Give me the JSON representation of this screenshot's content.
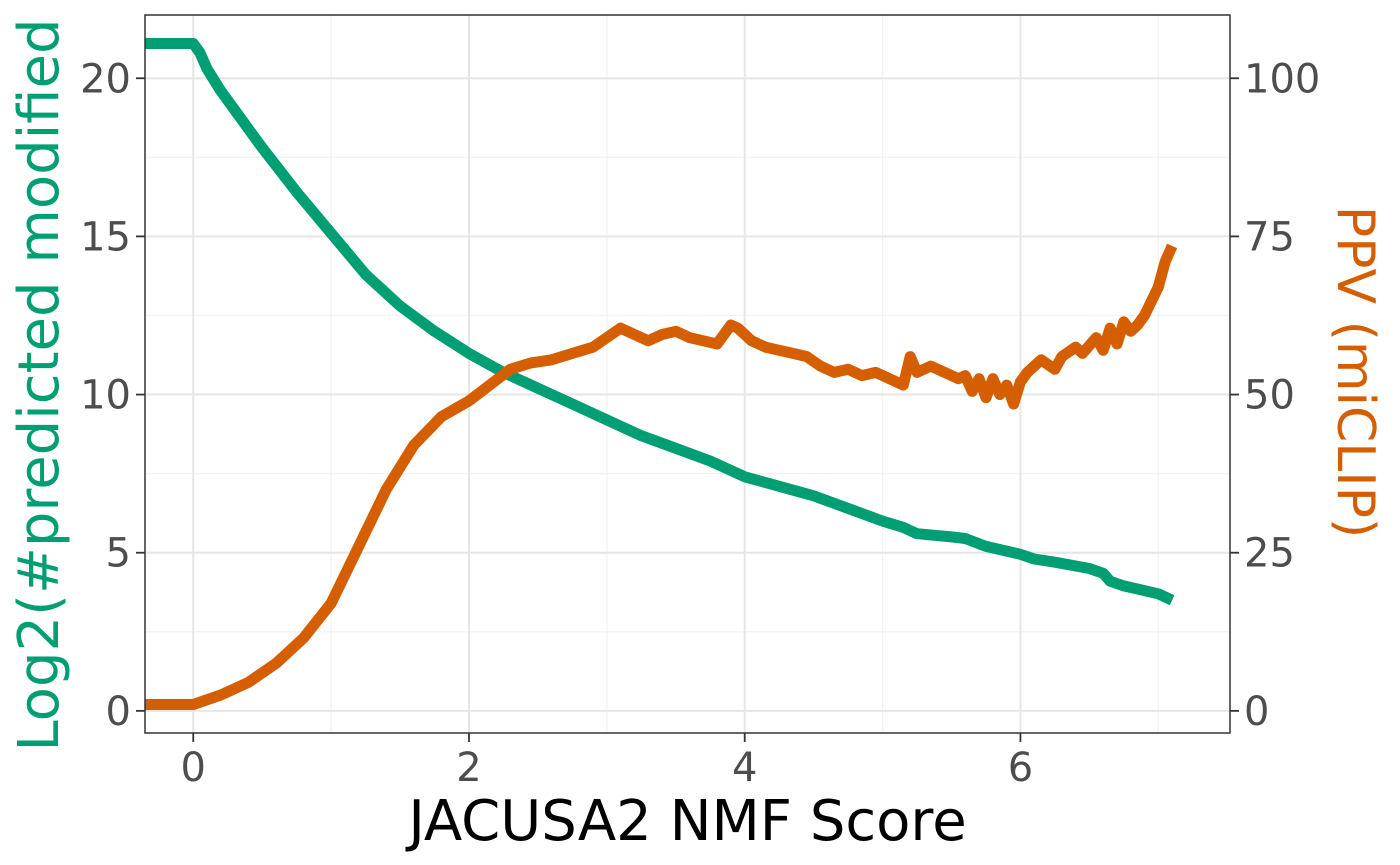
{
  "chart_data": {
    "type": "line",
    "title": "",
    "xlabel": "JACUSA2 NMF Score",
    "ylabel_left": "Log2(#predicted modified",
    "ylabel_right": "PPV (miCLIP)",
    "xlim": [
      -0.35,
      7.52
    ],
    "ylim_left": [
      -0.7,
      22.0
    ],
    "ylim_right": [
      -3.5,
      110.0
    ],
    "x_ticks": [
      0,
      2,
      4,
      6
    ],
    "y_ticks_left": [
      0,
      5,
      10,
      15,
      20
    ],
    "y_ticks_right": [
      0,
      25,
      50,
      75,
      100
    ],
    "grid": true,
    "colors": {
      "left_series": "#009E73",
      "right_series": "#D55E00"
    },
    "series": [
      {
        "axis": "left",
        "x": [
          -0.35,
          -0.2,
          0.0,
          0.05,
          0.1,
          0.2,
          0.3,
          0.5,
          0.75,
          1.0,
          1.25,
          1.5,
          1.75,
          2.0,
          2.25,
          2.5,
          2.75,
          3.0,
          3.25,
          3.5,
          3.75,
          4.0,
          4.25,
          4.5,
          4.75,
          5.0,
          5.15,
          5.25,
          5.5,
          5.6,
          5.75,
          6.0,
          6.1,
          6.25,
          6.5,
          6.6,
          6.65,
          6.75,
          7.0,
          7.1
        ],
        "y": [
          21.1,
          21.1,
          21.1,
          20.8,
          20.3,
          19.6,
          19.0,
          17.8,
          16.4,
          15.1,
          13.8,
          12.8,
          12.0,
          11.3,
          10.7,
          10.2,
          9.7,
          9.2,
          8.7,
          8.3,
          7.9,
          7.4,
          7.1,
          6.8,
          6.4,
          6.0,
          5.8,
          5.6,
          5.5,
          5.45,
          5.2,
          4.95,
          4.8,
          4.7,
          4.5,
          4.35,
          4.1,
          3.95,
          3.7,
          3.5
        ]
      },
      {
        "axis": "right",
        "x": [
          -0.35,
          -0.2,
          0.0,
          0.2,
          0.4,
          0.6,
          0.8,
          1.0,
          1.2,
          1.4,
          1.6,
          1.8,
          2.0,
          2.15,
          2.3,
          2.45,
          2.6,
          2.75,
          2.9,
          3.0,
          3.1,
          3.2,
          3.3,
          3.4,
          3.5,
          3.6,
          3.7,
          3.8,
          3.9,
          3.95,
          4.05,
          4.15,
          4.25,
          4.35,
          4.45,
          4.55,
          4.65,
          4.75,
          4.85,
          4.95,
          5.05,
          5.15,
          5.2,
          5.25,
          5.35,
          5.45,
          5.55,
          5.6,
          5.65,
          5.7,
          5.75,
          5.8,
          5.85,
          5.9,
          5.95,
          6.0,
          6.05,
          6.15,
          6.25,
          6.3,
          6.4,
          6.45,
          6.55,
          6.6,
          6.65,
          6.7,
          6.75,
          6.8,
          6.85,
          6.9,
          7.0,
          7.05,
          7.1
        ],
        "y": [
          1.0,
          1.0,
          1.0,
          2.5,
          4.5,
          7.5,
          11.5,
          17.0,
          26.0,
          35.0,
          42.0,
          46.5,
          49.0,
          51.5,
          54.0,
          55.0,
          55.5,
          56.5,
          57.5,
          59.0,
          60.5,
          59.5,
          58.5,
          59.5,
          60.0,
          59.0,
          58.5,
          58.0,
          61.0,
          60.5,
          58.5,
          57.5,
          57.0,
          56.5,
          56.0,
          54.5,
          53.5,
          54.0,
          53.0,
          53.5,
          52.5,
          51.5,
          56.0,
          53.5,
          54.5,
          53.5,
          52.5,
          53.0,
          50.5,
          52.5,
          49.5,
          52.5,
          50.0,
          51.5,
          48.5,
          52.0,
          53.5,
          55.5,
          54.0,
          56.0,
          57.5,
          56.5,
          59.0,
          57.0,
          60.5,
          58.0,
          61.5,
          60.0,
          61.0,
          62.5,
          67.0,
          71.0,
          73.5
        ]
      }
    ]
  }
}
